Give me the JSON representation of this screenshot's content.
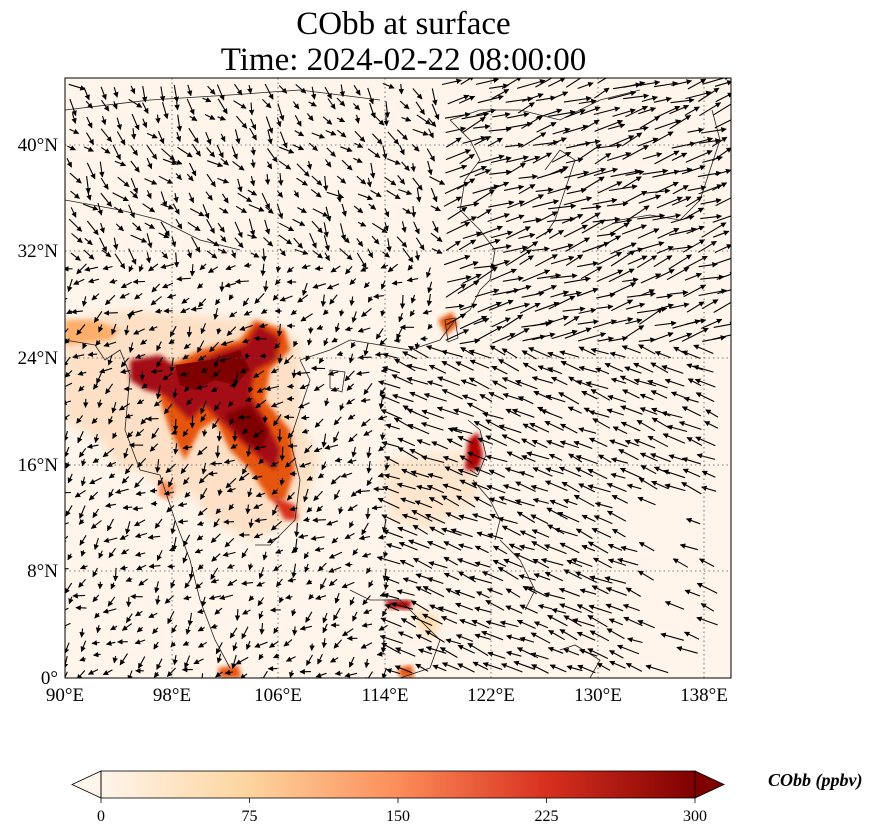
{
  "title": {
    "line1": "CObb at surface",
    "line2": "Time: 2024-02-22 08:00:00"
  },
  "map": {
    "lon_range": [
      90,
      140
    ],
    "lat_range": [
      0,
      45
    ],
    "lon_ticks": [
      "90°E",
      "98°E",
      "106°E",
      "114°E",
      "122°E",
      "130°E",
      "138°E"
    ],
    "lat_ticks": [
      "0°",
      "8°N",
      "16°N",
      "24°N",
      "32°N",
      "40°N"
    ],
    "gridlines": "dotted",
    "coastlines": true,
    "wind_vectors": true,
    "field_colors": {
      "low": "#fff5eb",
      "mid": "#fdae6b",
      "high": "#e6550d",
      "max": "#7f0000"
    },
    "high_concentration_regions": [
      "Myanmar / Thailand / Laos / Vietnam (Indochina)",
      "Northern Luzon",
      "Taiwan Strait coast",
      "Borneo north coast"
    ]
  },
  "colorbar": {
    "label": "CObb (ppbv)",
    "ticks": [
      "0",
      "75",
      "150",
      "225",
      "300"
    ],
    "min": 0,
    "max": 300,
    "extend": "both"
  }
}
